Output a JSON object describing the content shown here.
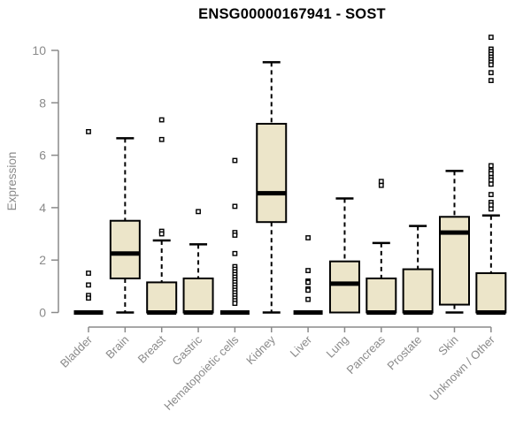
{
  "page": {
    "background": "#ffffff"
  },
  "chart_data": {
    "type": "boxplot",
    "title": "ENSG00000167941 - SOST",
    "ylabel": "Expression",
    "xlabel": "",
    "ylim": [
      0,
      10
    ],
    "yticks": [
      0,
      2,
      4,
      6,
      8,
      10
    ],
    "grid": false,
    "legend": "none",
    "categories": [
      "Bladder",
      "Brain",
      "Breast",
      "Gastric",
      "Hematopoietic cells",
      "Kidney",
      "Liver",
      "Lung",
      "Pancreas",
      "Prostate",
      "Skin",
      "Unknown / Other"
    ],
    "series": [
      {
        "name": "Bladder",
        "q1": 0,
        "median": 0,
        "q3": 0,
        "whisker_low": 0,
        "whisker_high": 0,
        "outliers": [
          6.9,
          1.5,
          1.05,
          0.65,
          0.55
        ]
      },
      {
        "name": "Brain",
        "q1": 1.3,
        "median": 2.25,
        "q3": 3.5,
        "whisker_low": 0,
        "whisker_high": 6.65,
        "outliers": []
      },
      {
        "name": "Breast",
        "q1": 0,
        "median": 0,
        "q3": 1.15,
        "whisker_low": 0,
        "whisker_high": 2.75,
        "outliers": [
          7.35,
          6.6,
          3.1,
          3.0
        ]
      },
      {
        "name": "Gastric",
        "q1": 0,
        "median": 0,
        "q3": 1.3,
        "whisker_low": 0,
        "whisker_high": 2.6,
        "outliers": [
          3.85
        ]
      },
      {
        "name": "Hematopoietic cells",
        "q1": 0,
        "median": 0,
        "q3": 0,
        "whisker_low": 0,
        "whisker_high": 0,
        "outliers": [
          5.8,
          4.05,
          3.05,
          2.95,
          2.25,
          1.75,
          1.65,
          1.55,
          1.45,
          1.35,
          1.25,
          1.15,
          1.05,
          0.95,
          0.85,
          0.75,
          0.65,
          0.55,
          0.45,
          0.35
        ]
      },
      {
        "name": "Kidney",
        "q1": 3.45,
        "median": 4.55,
        "q3": 7.2,
        "whisker_low": 0,
        "whisker_high": 9.55,
        "outliers": []
      },
      {
        "name": "Liver",
        "q1": 0,
        "median": 0,
        "q3": 0,
        "whisker_low": 0,
        "whisker_high": 0,
        "outliers": [
          2.85,
          1.6,
          1.2,
          1.15,
          0.9,
          0.85,
          0.5
        ]
      },
      {
        "name": "Lung",
        "q1": 0,
        "median": 1.1,
        "q3": 1.95,
        "whisker_low": 0,
        "whisker_high": 4.35,
        "outliers": []
      },
      {
        "name": "Pancreas",
        "q1": 0,
        "median": 0,
        "q3": 1.3,
        "whisker_low": 0,
        "whisker_high": 2.65,
        "outliers": [
          5.0,
          4.85
        ]
      },
      {
        "name": "Prostate",
        "q1": 0,
        "median": 0,
        "q3": 1.65,
        "whisker_low": 0,
        "whisker_high": 3.3,
        "outliers": []
      },
      {
        "name": "Skin",
        "q1": 0.3,
        "median": 3.05,
        "q3": 3.65,
        "whisker_low": 0,
        "whisker_high": 5.4,
        "outliers": []
      },
      {
        "name": "Unknown / Other",
        "q1": 0,
        "median": 0,
        "q3": 1.5,
        "whisker_low": 0,
        "whisker_high": 3.7,
        "outliers": [
          10.5,
          10.05,
          9.95,
          9.85,
          9.75,
          9.65,
          9.55,
          9.45,
          9.15,
          8.85,
          5.6,
          5.4,
          5.3,
          5.15,
          5.05,
          4.9,
          4.5,
          4.2,
          4.1,
          3.95
        ]
      }
    ],
    "colors": {
      "box_fill": "#ece5c9",
      "box_border": "#000000",
      "median": "#000000",
      "whisker": "#000000",
      "axis": "#8a8a8a",
      "title": "#000000"
    }
  }
}
